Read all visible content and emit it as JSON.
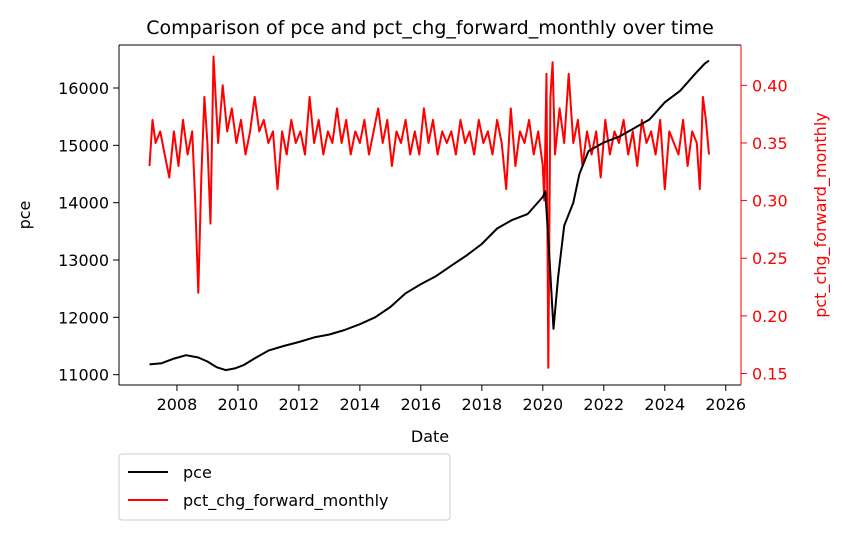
{
  "chart_data": {
    "type": "line",
    "title": "Comparison of pce and pct_chg_forward_monthly over time",
    "xlabel": "Date",
    "ylabel_left": "pce",
    "ylabel_right": "pct_chg_forward_monthly",
    "x_ticks": [
      2008,
      2010,
      2012,
      2014,
      2016,
      2018,
      2020,
      2022,
      2024,
      2026
    ],
    "x_range": [
      2006.1,
      2026.5
    ],
    "y_left_ticks": [
      11000,
      12000,
      13000,
      14000,
      15000,
      16000
    ],
    "y_left_range": [
      10820,
      16750
    ],
    "y_right_ticks": [
      0.15,
      0.2,
      0.25,
      0.3,
      0.35,
      0.4
    ],
    "y_right_range": [
      0.14,
      0.435
    ],
    "grid": false,
    "legend_position": "below-left",
    "colors": {
      "pce": "#000000",
      "pct": "#ff0000",
      "right_axis": "#ff0000"
    },
    "series": [
      {
        "name": "pce",
        "axis": "left",
        "x": [
          2007.1,
          2007.5,
          2007.9,
          2008.3,
          2008.7,
          2009.0,
          2009.3,
          2009.6,
          2009.9,
          2010.2,
          2010.6,
          2011.0,
          2011.5,
          2012.0,
          2012.5,
          2013.0,
          2013.5,
          2014.0,
          2014.5,
          2015.0,
          2015.5,
          2016.0,
          2016.5,
          2017.0,
          2017.5,
          2018.0,
          2018.5,
          2019.0,
          2019.5,
          2020.0,
          2020.08,
          2020.2,
          2020.35,
          2020.5,
          2020.7,
          2021.0,
          2021.2,
          2021.5,
          2022.0,
          2022.5,
          2023.0,
          2023.5,
          2024.0,
          2024.5,
          2025.0,
          2025.3,
          2025.45
        ],
        "y": [
          11180,
          11200,
          11280,
          11340,
          11300,
          11230,
          11130,
          11080,
          11110,
          11170,
          11300,
          11420,
          11500,
          11570,
          11650,
          11700,
          11780,
          11880,
          12000,
          12180,
          12420,
          12580,
          12720,
          12900,
          13080,
          13280,
          13550,
          13700,
          13800,
          14100,
          14200,
          13200,
          11800,
          12700,
          13600,
          14000,
          14500,
          14900,
          15050,
          15150,
          15300,
          15450,
          15750,
          15950,
          16250,
          16420,
          16480
        ]
      },
      {
        "name": "pct_chg_forward_monthly",
        "axis": "right",
        "x": [
          2007.1,
          2007.2,
          2007.3,
          2007.45,
          2007.6,
          2007.75,
          2007.9,
          2008.05,
          2008.2,
          2008.35,
          2008.5,
          2008.6,
          2008.7,
          2008.8,
          2008.9,
          2009.0,
          2009.1,
          2009.2,
          2009.35,
          2009.5,
          2009.65,
          2009.8,
          2009.95,
          2010.1,
          2010.25,
          2010.4,
          2010.55,
          2010.7,
          2010.85,
          2011.0,
          2011.15,
          2011.3,
          2011.45,
          2011.6,
          2011.75,
          2011.9,
          2012.05,
          2012.2,
          2012.35,
          2012.5,
          2012.65,
          2012.8,
          2012.95,
          2013.1,
          2013.25,
          2013.4,
          2013.55,
          2013.7,
          2013.85,
          2014.0,
          2014.15,
          2014.3,
          2014.45,
          2014.6,
          2014.75,
          2014.9,
          2015.05,
          2015.2,
          2015.35,
          2015.5,
          2015.65,
          2015.8,
          2015.95,
          2016.1,
          2016.25,
          2016.4,
          2016.55,
          2016.7,
          2016.85,
          2017.0,
          2017.15,
          2017.3,
          2017.45,
          2017.6,
          2017.75,
          2017.9,
          2018.05,
          2018.2,
          2018.35,
          2018.5,
          2018.65,
          2018.8,
          2018.95,
          2019.1,
          2019.25,
          2019.4,
          2019.55,
          2019.7,
          2019.85,
          2020.0,
          2020.05,
          2020.12,
          2020.18,
          2020.25,
          2020.32,
          2020.4,
          2020.55,
          2020.7,
          2020.85,
          2021.0,
          2021.15,
          2021.3,
          2021.45,
          2021.6,
          2021.75,
          2021.9,
          2022.05,
          2022.2,
          2022.35,
          2022.5,
          2022.65,
          2022.8,
          2022.95,
          2023.1,
          2023.25,
          2023.4,
          2023.55,
          2023.7,
          2023.85,
          2024.0,
          2024.15,
          2024.3,
          2024.45,
          2024.6,
          2024.75,
          2024.9,
          2025.05,
          2025.15,
          2025.25,
          2025.35,
          2025.45
        ],
        "y": [
          0.33,
          0.37,
          0.35,
          0.36,
          0.34,
          0.32,
          0.36,
          0.33,
          0.37,
          0.34,
          0.36,
          0.3,
          0.22,
          0.32,
          0.39,
          0.35,
          0.28,
          0.425,
          0.35,
          0.4,
          0.36,
          0.38,
          0.35,
          0.37,
          0.34,
          0.36,
          0.39,
          0.36,
          0.37,
          0.35,
          0.36,
          0.31,
          0.36,
          0.34,
          0.37,
          0.35,
          0.36,
          0.34,
          0.39,
          0.35,
          0.37,
          0.34,
          0.36,
          0.35,
          0.38,
          0.35,
          0.37,
          0.34,
          0.36,
          0.35,
          0.37,
          0.34,
          0.36,
          0.38,
          0.35,
          0.37,
          0.33,
          0.36,
          0.35,
          0.37,
          0.34,
          0.36,
          0.34,
          0.38,
          0.35,
          0.37,
          0.34,
          0.36,
          0.35,
          0.36,
          0.34,
          0.37,
          0.35,
          0.36,
          0.34,
          0.37,
          0.35,
          0.36,
          0.34,
          0.37,
          0.35,
          0.31,
          0.38,
          0.33,
          0.36,
          0.35,
          0.37,
          0.34,
          0.36,
          0.33,
          0.3,
          0.41,
          0.155,
          0.39,
          0.42,
          0.34,
          0.38,
          0.35,
          0.41,
          0.35,
          0.37,
          0.33,
          0.36,
          0.34,
          0.36,
          0.32,
          0.37,
          0.34,
          0.36,
          0.35,
          0.37,
          0.34,
          0.36,
          0.33,
          0.37,
          0.35,
          0.36,
          0.34,
          0.37,
          0.31,
          0.36,
          0.35,
          0.34,
          0.37,
          0.33,
          0.36,
          0.35,
          0.31,
          0.39,
          0.37,
          0.34
        ]
      }
    ]
  }
}
